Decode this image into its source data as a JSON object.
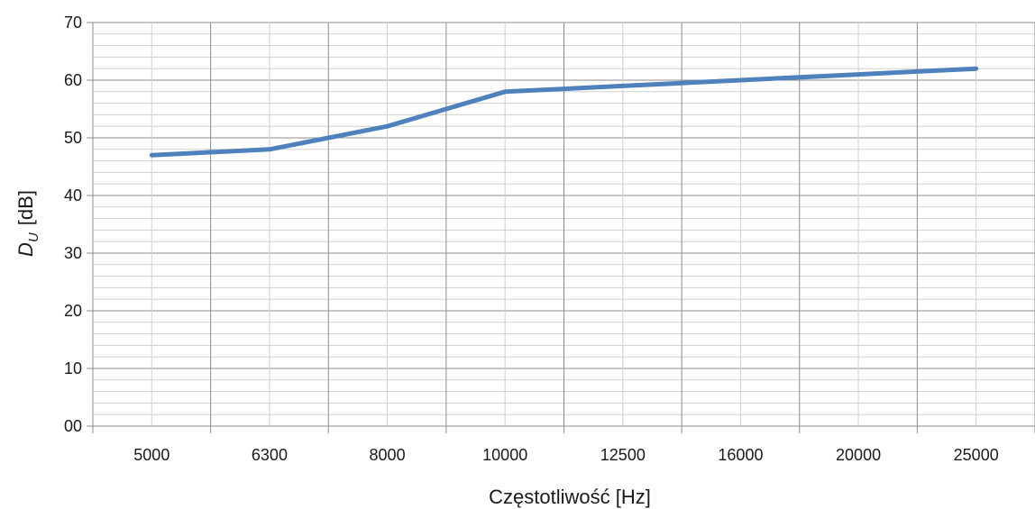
{
  "chart_data": {
    "type": "line",
    "categories": [
      "5000",
      "6300",
      "8000",
      "10000",
      "12500",
      "16000",
      "20000",
      "25000"
    ],
    "y_tick_labels": [
      "00",
      "10",
      "20",
      "30",
      "40",
      "50",
      "60",
      "70"
    ],
    "series": [
      {
        "name": "",
        "color": "#4f81bd",
        "x": [
          0,
          0.5,
          1,
          1.5,
          2,
          2.5,
          3,
          3.5,
          4,
          4.5,
          5,
          5.5,
          6,
          6.5,
          7
        ],
        "values": [
          47,
          47.5,
          48,
          50,
          52,
          55,
          58,
          58.5,
          59,
          59.5,
          60,
          60.5,
          61,
          61.5,
          62
        ]
      }
    ],
    "xlabel": "Częstotliwość  [Hz]",
    "ylabel": {
      "main": "D",
      "sub": "U",
      "unit": "[dB]"
    },
    "ylim": [
      0,
      70
    ],
    "y_major_step": 10,
    "y_minor_step": 2,
    "grid": true,
    "legend": "none",
    "colors": {
      "line": "#4f81bd",
      "major_grid": "#8c8c8c",
      "minor_grid": "#d0d0d0",
      "axis": "#8c8c8c"
    }
  }
}
